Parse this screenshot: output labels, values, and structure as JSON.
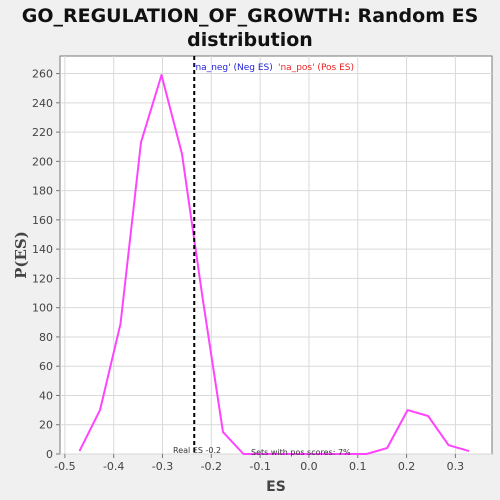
{
  "chart_data": {
    "type": "line",
    "title_line1": "GO_REGULATION_OF_GROWTH: Random ES",
    "title_line2": "distribution",
    "xlabel": "ES",
    "ylabel": "P(ES)",
    "xlim": [
      -0.51,
      0.375
    ],
    "ylim": [
      0,
      272
    ],
    "xticks": [
      -0.5,
      -0.4,
      -0.3,
      -0.2,
      -0.1,
      0.0,
      0.1,
      0.2,
      0.3
    ],
    "xtick_labels": [
      "-0.5",
      "-0.4",
      "-0.3",
      "-0.2",
      "-0.1",
      "0.0",
      "0.1",
      "0.2",
      "0.3"
    ],
    "yticks": [
      0,
      20,
      40,
      60,
      80,
      100,
      120,
      140,
      160,
      180,
      200,
      220,
      240,
      260
    ],
    "grid": true,
    "series": [
      {
        "color": "#ff44ff",
        "x": [
          -0.47,
          -0.428,
          -0.386,
          -0.344,
          -0.302,
          -0.26,
          -0.218,
          -0.176,
          -0.134,
          -0.092,
          -0.05,
          -0.008,
          0.034,
          0.076,
          0.118,
          0.16,
          0.202,
          0.244,
          0.286,
          0.328
        ],
        "y": [
          2,
          30,
          89,
          213,
          259,
          205,
          107,
          15,
          0,
          0,
          0,
          0,
          0,
          0,
          0,
          4,
          30,
          26,
          6,
          2
        ]
      }
    ],
    "real_es": -0.235,
    "annotations": {
      "neg_label": "'na_neg' (Neg ES)",
      "neg_color": "#2222dd",
      "pos_label": "'na_pos' (Pos ES)",
      "pos_color": "#ee2222",
      "real_es_label": "Real ES -0.2",
      "pos_scores_label": "Sets with pos scores: 7%"
    }
  }
}
